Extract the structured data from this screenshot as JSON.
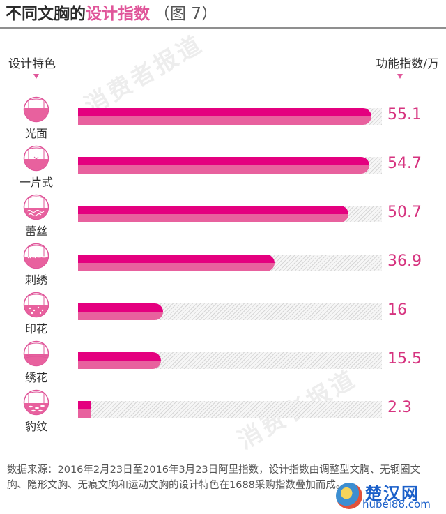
{
  "title": {
    "prefix": "不同文胸的",
    "highlight": "设计指数",
    "figure": "（图 7）"
  },
  "headers": {
    "left": "设计特色",
    "right": "功能指数/万"
  },
  "watermark": "消费者报道",
  "colors": {
    "bar_top": "#e4007f",
    "bar_bottom": "#e8619e",
    "value_text": "#d6337f",
    "title_highlight": "#e0569a"
  },
  "rows": [
    {
      "label": "光面",
      "value": "55.1",
      "icon": "plain-bra-icon"
    },
    {
      "label": "一片式",
      "value": "54.7",
      "icon": "one-piece-bra-icon"
    },
    {
      "label": "蕾丝",
      "value": "50.7",
      "icon": "lace-bra-icon"
    },
    {
      "label": "刺绣",
      "value": "36.9",
      "icon": "embroidery-bra-icon"
    },
    {
      "label": "印花",
      "value": "16",
      "icon": "print-bra-icon"
    },
    {
      "label": "绣花",
      "value": "15.5",
      "icon": "embroidered-flower-bra-icon"
    },
    {
      "label": "豹纹",
      "value": "2.3",
      "icon": "leopard-bra-icon"
    }
  ],
  "footnote": "数据来源：2016年2月23日至2016年3月23日阿里指数，设计指数由调整型文胸、无钢圈文胸、隐形文胸、无痕文胸和运动文胸的设计特色在1688采购指数叠加而成。",
  "logo": {
    "cn": "楚汉网",
    "en": "hubei88.com"
  },
  "chart_data": {
    "type": "bar",
    "orientation": "horizontal",
    "title": "不同文胸的设计指数（图 7）",
    "xlabel": "功能指数/万",
    "ylabel": "设计特色",
    "categories": [
      "光面",
      "一片式",
      "蕾丝",
      "刺绣",
      "印花",
      "绣花",
      "豹纹"
    ],
    "values": [
      55.1,
      54.7,
      50.7,
      36.9,
      16,
      15.5,
      2.3
    ],
    "xlim": [
      0,
      57
    ],
    "grid": false,
    "legend": "none",
    "source": "数据来源：2016年2月23日至2016年3月23日阿里指数，设计指数由调整型文胸、无钢圈文胸、隐形文胸、无痕文胸和运动文胸的设计特色在1688采购指数叠加而成。"
  }
}
